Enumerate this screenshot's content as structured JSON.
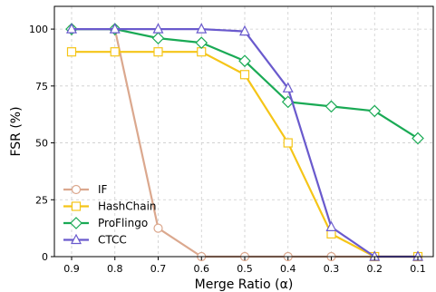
{
  "chart_data": {
    "type": "line",
    "title": "",
    "xlabel": "Merge Ratio (α)",
    "ylabel": "FSR (%)",
    "x": [
      "0.9",
      "0.8",
      "0.7",
      "0.6",
      "0.5",
      "0.4",
      "0.3",
      "0.2",
      "0.1"
    ],
    "yticks": [
      "0",
      "25",
      "50",
      "75",
      "100"
    ],
    "ylim": [
      0,
      110
    ],
    "grid": true,
    "legend_position": "bottom-left",
    "series": [
      {
        "name": "IF",
        "color": "#dba88e",
        "marker": "circle",
        "values": [
          100,
          100,
          12.5,
          0,
          0,
          0,
          0,
          0,
          0
        ]
      },
      {
        "name": "HashChain",
        "color": "#f5c518",
        "marker": "square",
        "values": [
          90,
          90,
          90,
          90,
          80,
          50,
          10,
          0,
          0
        ]
      },
      {
        "name": "ProFlingo",
        "color": "#1aaa55",
        "marker": "diamond",
        "values": [
          100,
          100,
          96,
          94,
          86,
          68,
          66,
          64,
          52
        ]
      },
      {
        "name": "CTCC",
        "color": "#6a5acd",
        "marker": "triangle",
        "values": [
          100,
          100,
          100,
          100,
          99,
          74,
          13,
          0,
          0
        ]
      }
    ]
  }
}
